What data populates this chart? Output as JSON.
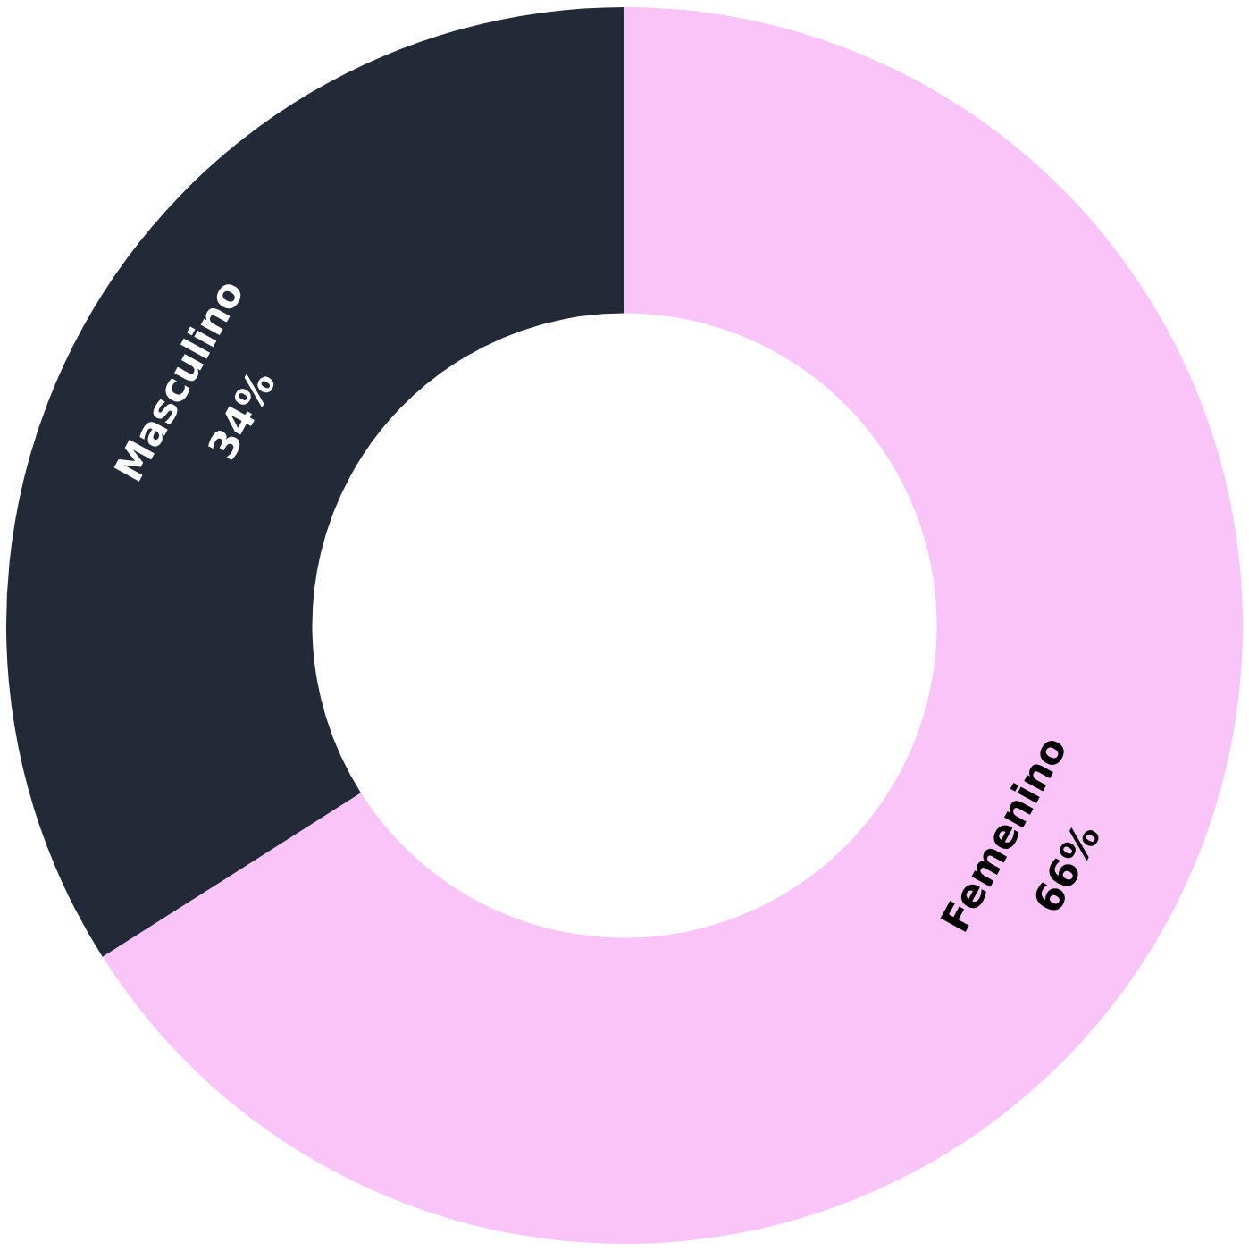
{
  "chart_data": {
    "type": "donut",
    "categories": [
      "Femenino",
      "Masculino"
    ],
    "values": [
      66,
      34
    ],
    "value_labels": [
      "66%",
      "34%"
    ],
    "colors": [
      "#f9c5f9",
      "#222a38"
    ],
    "legend": false
  }
}
